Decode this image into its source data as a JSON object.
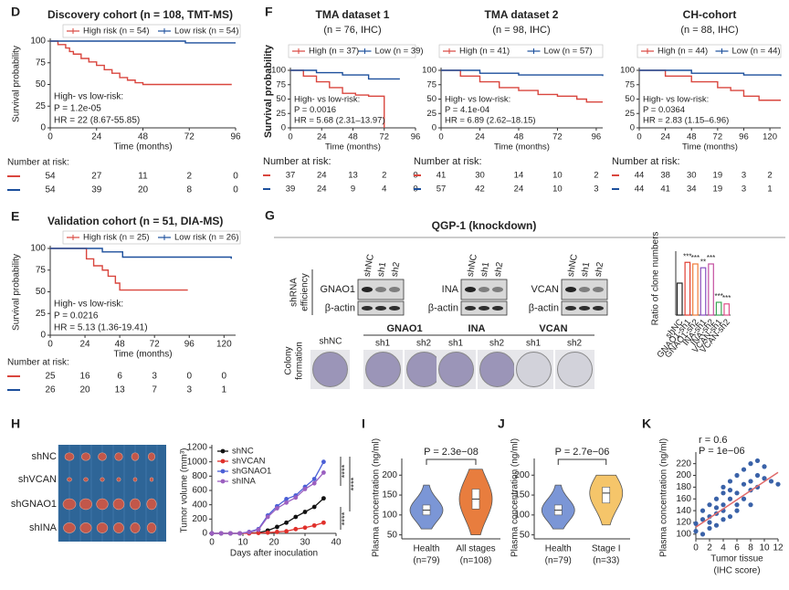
{
  "chart_data": [
    {
      "type": "km",
      "label": "D",
      "title": "Discovery cohort (n = 108, TMT-MS)",
      "ylabel": "Survival probability",
      "xlabel": "Time (months)",
      "xlim": [
        0,
        96
      ],
      "xticks": [
        0,
        24,
        48,
        72,
        96
      ],
      "ylim": [
        0,
        100
      ],
      "yticks": [
        0,
        25,
        50,
        75,
        100
      ],
      "series": [
        {
          "name": "High risk (n = 54)",
          "color": "#d9463e",
          "times": [
            0,
            4,
            8,
            10,
            12,
            16,
            20,
            24,
            28,
            32,
            36,
            40,
            44,
            48,
            94
          ],
          "values": [
            100,
            96,
            92,
            88,
            85,
            80,
            76,
            72,
            67,
            63,
            58,
            55,
            52,
            50,
            50
          ]
        },
        {
          "name": "Low risk (n = 54)",
          "color": "#1c4f9c",
          "times": [
            0,
            40,
            70,
            96
          ],
          "values": [
            100,
            100,
            98,
            98
          ]
        }
      ],
      "annotations": [
        "High- vs low-risk:",
        "P = 1.2e-05",
        "HR = 22 (8.67-55.85)"
      ],
      "risk_title": "Number at risk:",
      "risk": [
        [
          54,
          27,
          11,
          2,
          0
        ],
        [
          54,
          39,
          20,
          8,
          0
        ]
      ]
    },
    {
      "type": "km",
      "label": "E",
      "title": "Validation cohort (n = 51, DIA-MS)",
      "ylabel": "Survival probability",
      "xlabel": "Time (months)",
      "xlim": [
        0,
        128
      ],
      "xticks": [
        0,
        24,
        48,
        72,
        96,
        120
      ],
      "ylim": [
        0,
        100
      ],
      "yticks": [
        0,
        25,
        50,
        75,
        100
      ],
      "series": [
        {
          "name": "High risk (n = 25)",
          "color": "#d9463e",
          "times": [
            0,
            20,
            25,
            30,
            36,
            40,
            45,
            48,
            95
          ],
          "values": [
            100,
            100,
            88,
            80,
            75,
            68,
            60,
            52,
            52
          ]
        },
        {
          "name": "Low risk (n = 26)",
          "color": "#1c4f9c",
          "times": [
            0,
            36,
            50,
            125
          ],
          "values": [
            100,
            96,
            90,
            88
          ]
        }
      ],
      "annotations": [
        "High- vs low-risk:",
        "P = 0.0216",
        "HR = 5.13 (1.36-19.41)"
      ],
      "risk_title": "Number at risk:",
      "risk": [
        [
          25,
          16,
          6,
          3,
          0,
          0
        ],
        [
          26,
          20,
          13,
          7,
          3,
          1
        ]
      ]
    },
    {
      "type": "km",
      "label": "F",
      "title": "TMA dataset 1",
      "subtitle": "(n = 76, IHC)",
      "ylabel": "Survival probability",
      "xlabel": "Time (months)",
      "xlim": [
        0,
        96
      ],
      "xticks": [
        0,
        24,
        48,
        72,
        96
      ],
      "ylim": [
        0,
        100
      ],
      "yticks": [
        0,
        25,
        50,
        75,
        100
      ],
      "series": [
        {
          "name": "High (n = 37)",
          "color": "#d9463e",
          "times": [
            0,
            10,
            20,
            30,
            40,
            50,
            60,
            72
          ],
          "values": [
            100,
            90,
            80,
            70,
            60,
            57,
            55,
            0
          ]
        },
        {
          "name": "Low (n = 39)",
          "color": "#1c4f9c",
          "times": [
            0,
            20,
            40,
            60,
            84
          ],
          "values": [
            100,
            96,
            92,
            85,
            85
          ]
        }
      ],
      "annotations": [
        "High- vs low-risk:",
        "P = 0.0016",
        "HR = 5.68 (2.31–13.97)"
      ],
      "risk_title": "Number at risk:",
      "risk": [
        [
          37,
          24,
          13,
          2,
          0
        ],
        [
          39,
          24,
          9,
          4,
          0
        ]
      ]
    },
    {
      "type": "km",
      "title": "TMA dataset 2",
      "subtitle": "(n = 98, IHC)",
      "xlabel": "Time (months)",
      "xlim": [
        0,
        100
      ],
      "xticks": [
        0,
        24,
        48,
        72,
        96
      ],
      "ylim": [
        0,
        100
      ],
      "yticks": [
        0,
        25,
        50,
        75,
        100
      ],
      "series": [
        {
          "name": "High (n = 41)",
          "color": "#d9463e",
          "times": [
            0,
            12,
            24,
            36,
            48,
            60,
            72,
            84,
            90,
            100
          ],
          "values": [
            100,
            90,
            80,
            70,
            65,
            58,
            55,
            50,
            45,
            45
          ]
        },
        {
          "name": "Low (n = 57)",
          "color": "#1c4f9c",
          "times": [
            0,
            24,
            48,
            100
          ],
          "values": [
            100,
            95,
            92,
            90
          ]
        }
      ],
      "annotations": [
        "High- vs low-risk:",
        "P = 4.1e-04",
        "HR = 6.89 (2.62–18.15)"
      ],
      "risk_title": "Number at risk:",
      "risk": [
        [
          41,
          30,
          14,
          10,
          2
        ],
        [
          57,
          42,
          24,
          10,
          3
        ]
      ]
    },
    {
      "type": "km",
      "title": "CH-cohort",
      "subtitle": "(n = 88, IHC)",
      "xlabel": "Time (months)",
      "xlim": [
        0,
        130
      ],
      "xticks": [
        0,
        24,
        48,
        72,
        96,
        120
      ],
      "ylim": [
        0,
        100
      ],
      "yticks": [
        0,
        25,
        50,
        75,
        100
      ],
      "series": [
        {
          "name": "High (n = 44)",
          "color": "#d9463e",
          "times": [
            0,
            24,
            48,
            72,
            84,
            96,
            110,
            130
          ],
          "values": [
            100,
            90,
            80,
            70,
            65,
            55,
            48,
            48
          ]
        },
        {
          "name": "Low (n = 44)",
          "color": "#1c4f9c",
          "times": [
            0,
            48,
            96,
            130
          ],
          "values": [
            100,
            95,
            92,
            90
          ]
        }
      ],
      "annotations": [
        "High- vs low-risk:",
        "P = 0.0364",
        "HR = 2.83 (1.15–6.96)"
      ],
      "risk_title": "Number at risk:",
      "risk": [
        [
          44,
          38,
          30,
          19,
          3,
          2
        ],
        [
          44,
          41,
          34,
          19,
          3,
          1
        ]
      ]
    },
    {
      "type": "blot",
      "label": "G",
      "title": "QGP-1 (knockdown)",
      "efficiency_label": [
        "shRNA",
        "efficiency"
      ],
      "lanes": [
        "shNC",
        "sh1",
        "sh2"
      ],
      "targets": [
        "GNAO1",
        "INA",
        "VCAN"
      ],
      "loading": "β-actin",
      "colony_label": [
        "Colony",
        "formation"
      ],
      "colony_groups": [
        "shNC",
        "GNAO1",
        "INA",
        "VCAN"
      ],
      "colony_lanes": [
        "sh1",
        "sh2"
      ]
    },
    {
      "type": "bar",
      "ylabel": "Ratio of clone numbers",
      "ylim": [
        0,
        2
      ],
      "categories": [
        "shNC",
        "GNAO1-sh1",
        "GNAO1-sh2",
        "INA-sh1",
        "INA-sh2",
        "VCAN-sh1",
        "VCAN-sh2"
      ],
      "values": [
        1.0,
        1.65,
        1.6,
        1.48,
        1.6,
        0.4,
        0.35
      ],
      "colors": [
        "#222222",
        "#e03c31",
        "#f07c3a",
        "#8a4fbf",
        "#c44fa0",
        "#3aa655",
        "#e0508a"
      ],
      "significance": [
        null,
        "***",
        "***",
        "**",
        "***",
        "***",
        "***"
      ]
    },
    {
      "type": "line",
      "label": "H",
      "photo_labels": [
        "shNC",
        "shVCAN",
        "shGNAO1",
        "shINA"
      ],
      "ylabel": "Tumor volume (mm³)",
      "xlabel": "Days after inoculation",
      "xlim": [
        0,
        40
      ],
      "xticks": [
        0,
        10,
        20,
        30,
        40
      ],
      "ylim": [
        0,
        1200
      ],
      "yticks": [
        0,
        200,
        400,
        600,
        800,
        1000,
        1200
      ],
      "x": [
        0,
        3,
        6,
        9,
        12,
        15,
        18,
        21,
        24,
        27,
        30,
        33,
        36
      ],
      "series": [
        {
          "name": "shNC",
          "color": "#111111",
          "values": [
            0,
            0,
            0,
            0,
            5,
            10,
            40,
            90,
            150,
            230,
            300,
            370,
            490
          ]
        },
        {
          "name": "shVCAN",
          "color": "#e0302b",
          "values": [
            0,
            0,
            0,
            0,
            0,
            5,
            10,
            20,
            30,
            60,
            80,
            110,
            150
          ]
        },
        {
          "name": "shGNAO1",
          "color": "#4b5fd6",
          "values": [
            0,
            0,
            0,
            0,
            20,
            60,
            250,
            380,
            480,
            530,
            650,
            760,
            1000
          ]
        },
        {
          "name": "shINA",
          "color": "#9b5fc0",
          "values": [
            0,
            0,
            0,
            0,
            15,
            50,
            230,
            350,
            430,
            500,
            620,
            700,
            850
          ]
        }
      ],
      "significance": [
        "****",
        "****",
        "****"
      ]
    },
    {
      "type": "violin",
      "label": "I",
      "ylabel": "Plasma concentration (ng/ml)",
      "pvalue": "P = 2.3e−08",
      "ylim": [
        40,
        235
      ],
      "yticks": [
        50,
        100,
        150,
        200
      ],
      "categories": [
        "Health",
        "All stages"
      ],
      "group_sizes": [
        "(n=79)",
        "(n=108)"
      ],
      "colors": [
        "#7b96d6",
        "#e87d3e"
      ],
      "min": [
        65,
        50
      ],
      "q1": [
        100,
        115
      ],
      "median": [
        112,
        140
      ],
      "q3": [
        125,
        165
      ],
      "max": [
        175,
        215
      ]
    },
    {
      "type": "violin",
      "label": "J",
      "ylabel": "Plasma concentration (ng/ml)",
      "pvalue": "P = 2.7e−06",
      "ylim": [
        40,
        235
      ],
      "yticks": [
        50,
        100,
        150,
        200
      ],
      "categories": [
        "Health",
        "Stage I"
      ],
      "group_sizes": [
        "(n=79)",
        "(n=33)"
      ],
      "colors": [
        "#7b96d6",
        "#f5c56a"
      ],
      "min": [
        65,
        75
      ],
      "q1": [
        100,
        130
      ],
      "median": [
        112,
        155
      ],
      "q3": [
        125,
        170
      ],
      "max": [
        175,
        200
      ]
    },
    {
      "type": "scatter",
      "label": "K",
      "ylabel": "Plasma concentration (ng/ml)",
      "xlabel": "Tumor tissue",
      "xlabel2": "(IHC score)",
      "annotations": [
        "r = 0.6",
        "P = 1e−06"
      ],
      "color": "#3a62a8",
      "trend_color": "#e06a6a",
      "xlim": [
        0,
        12
      ],
      "xticks": [
        0,
        2,
        4,
        6,
        8,
        10,
        12
      ],
      "ylim": [
        92,
        235
      ],
      "yticks": [
        100,
        120,
        140,
        160,
        180,
        200,
        220
      ],
      "x": [
        0,
        0,
        1,
        1,
        1,
        2,
        2,
        2,
        2,
        3,
        3,
        3,
        3,
        4,
        4,
        4,
        4,
        4,
        5,
        5,
        5,
        5,
        6,
        6,
        6,
        6,
        7,
        7,
        7,
        8,
        8,
        8,
        8,
        9,
        9,
        9,
        10,
        10,
        11,
        12
      ],
      "y": [
        105,
        118,
        100,
        125,
        140,
        110,
        130,
        150,
        120,
        135,
        160,
        115,
        145,
        125,
        170,
        150,
        180,
        140,
        160,
        130,
        175,
        190,
        150,
        200,
        170,
        140,
        185,
        210,
        160,
        190,
        220,
        175,
        150,
        200,
        225,
        180,
        195,
        215,
        190,
        185
      ],
      "trend": [
        112,
        205
      ]
    }
  ]
}
